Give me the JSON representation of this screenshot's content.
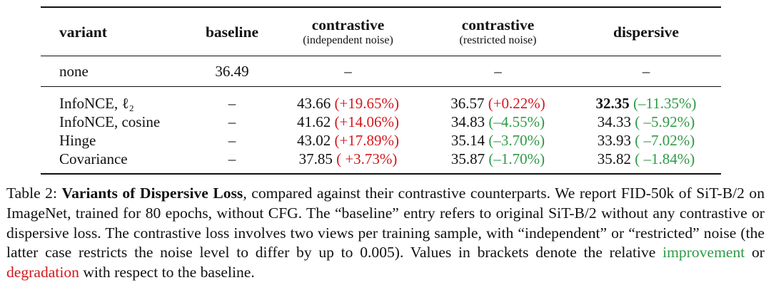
{
  "table": {
    "headers": {
      "variant": "variant",
      "baseline": "baseline",
      "contrastive_independent": {
        "title": "contrastive",
        "sub": "(independent noise)"
      },
      "contrastive_restricted": {
        "title": "contrastive",
        "sub": "(restricted noise)"
      },
      "dispersive": "dispersive"
    },
    "none_row": {
      "variant": "none",
      "baseline": "36.49",
      "independent": "–",
      "restricted": "–",
      "dispersive": "–"
    },
    "rows": [
      {
        "variant": "InfoNCE, ℓ₂",
        "baseline": "–",
        "independent": {
          "value": "43.66",
          "delta": "(+19.65%)",
          "sign": "pos"
        },
        "restricted": {
          "value": "36.57",
          "delta": "(+0.22%)",
          "sign": "pos"
        },
        "dispersive": {
          "value": "32.35",
          "delta": "(–11.35%)",
          "sign": "neg",
          "bold": true
        }
      },
      {
        "variant": "InfoNCE, cosine",
        "baseline": "–",
        "independent": {
          "value": "41.62",
          "delta": "(+14.06%)",
          "sign": "pos"
        },
        "restricted": {
          "value": "34.83",
          "delta": "(–4.55%)",
          "sign": "neg"
        },
        "dispersive": {
          "value": "34.33",
          "delta": "( –5.92%)",
          "sign": "neg"
        }
      },
      {
        "variant": "Hinge",
        "baseline": "–",
        "independent": {
          "value": "43.02",
          "delta": "(+17.89%)",
          "sign": "pos"
        },
        "restricted": {
          "value": "35.14",
          "delta": "(–3.70%)",
          "sign": "neg"
        },
        "dispersive": {
          "value": "33.93",
          "delta": "( –7.02%)",
          "sign": "neg"
        }
      },
      {
        "variant": "Covariance",
        "baseline": "–",
        "independent": {
          "value": "37.85",
          "delta": "( +3.73%)",
          "sign": "pos"
        },
        "restricted": {
          "value": "35.87",
          "delta": "(–1.70%)",
          "sign": "neg"
        },
        "dispersive": {
          "value": "35.82",
          "delta": "( –1.84%)",
          "sign": "neg"
        }
      }
    ]
  },
  "caption": {
    "label": "Table 2:",
    "title": "Variants of Dispersive Loss",
    "text_1": ", compared against their contrastive counterparts. We report FID-50k of SiT-B/2 on ImageNet, trained for 80 epochs, without CFG. The “baseline” entry refers to original SiT-B/2 without any contrastive or dispersive loss. The contrastive loss involves two views per training sample, with “independent” or “restricted” noise (the latter case restricts the noise level to differ by up to 0.005). Values in brackets denote the relative ",
    "improvement": "improvement",
    "or": " or ",
    "degradation": "degradation",
    "text_2": " with respect to the baseline."
  },
  "colors": {
    "improvement": "#2e9a46",
    "degradation": "#d4171b"
  }
}
